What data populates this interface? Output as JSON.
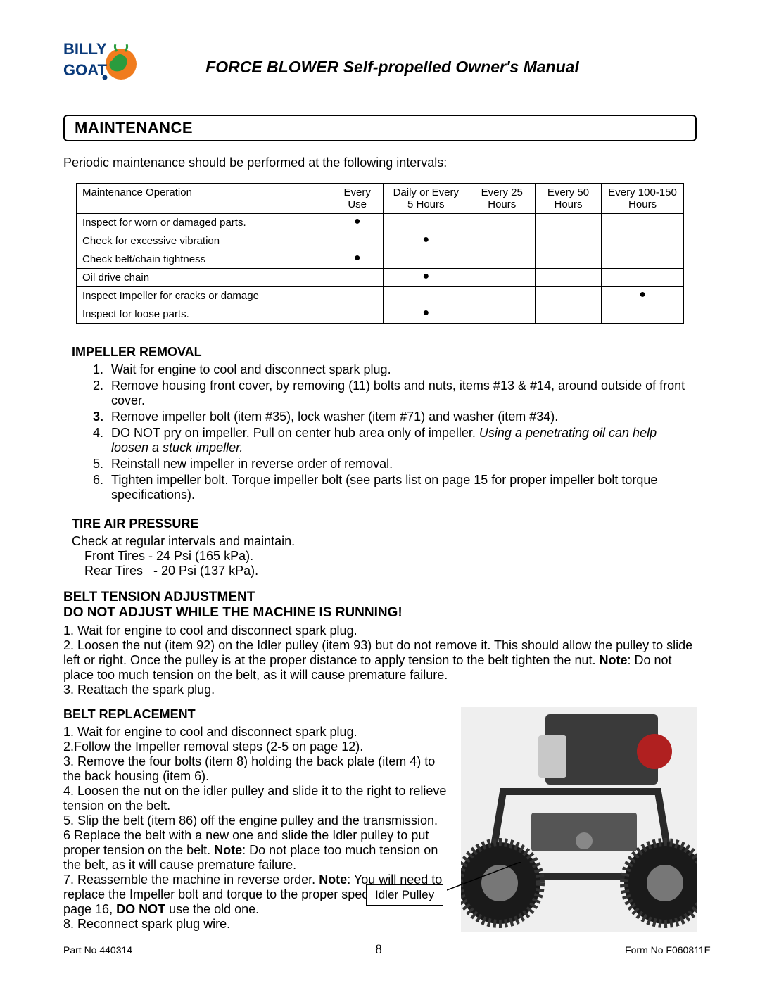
{
  "header": {
    "logo_top": "BILLY",
    "logo_bottom": "GOAT",
    "logo_colors": {
      "text": "#0a3a7a",
      "goat": "#2a9c3e",
      "bg_circle": "#f07c1e"
    },
    "title": "FORCE BLOWER Self-propelled Owner's Manual"
  },
  "section": {
    "title": "MAINTENANCE"
  },
  "intro": "Periodic maintenance should be performed at the following intervals:",
  "table": {
    "headers": [
      "Maintenance Operation",
      "Every Use",
      "Daily or Every 5 Hours",
      "Every 25 Hours",
      "Every 50 Hours",
      "Every 100-150 Hours"
    ],
    "rows": [
      {
        "op": "Inspect for worn or damaged parts.",
        "dots": [
          true,
          false,
          false,
          false,
          false
        ]
      },
      {
        "op": "Check for excessive vibration",
        "dots": [
          false,
          true,
          false,
          false,
          false
        ]
      },
      {
        "op": "Check belt/chain tightness",
        "dots": [
          true,
          false,
          false,
          false,
          false
        ]
      },
      {
        "op": "Oil drive chain",
        "dots": [
          false,
          true,
          false,
          false,
          false
        ]
      },
      {
        "op": "Inspect Impeller for cracks or damage",
        "dots": [
          false,
          false,
          false,
          false,
          true
        ]
      },
      {
        "op": "Inspect for loose parts.",
        "dots": [
          false,
          true,
          false,
          false,
          false
        ]
      }
    ],
    "dot_char": "●"
  },
  "impeller": {
    "title": "IMPELLER REMOVAL",
    "steps": [
      "Wait for engine to cool and disconnect spark plug.",
      "Remove housing front cover, by removing (11) bolts and nuts, items #13 & #14, around outside of front cover.",
      "Remove impeller bolt (item #35), lock washer (item #71) and washer (item #34).",
      "DO NOT pry on impeller. Pull on center hub area only of impeller. <span class=\"ital\">Using a penetrating oil can help loosen a stuck impeller.</span>",
      "Reinstall new impeller in reverse order of removal.",
      "Tighten impeller bolt. Torque impeller bolt (see parts list on page 15 for proper impeller bolt torque specifications)."
    ]
  },
  "tire": {
    "title": "TIRE AIR PRESSURE",
    "line1": "Check at regular intervals and maintain.",
    "line2": "Front Tires - 24 Psi (165 kPa).",
    "line3": "Rear Tires   - 20 Psi (137 kPa)."
  },
  "belt_tension": {
    "title1": "BELT TENSION ADJUSTMENT",
    "title2": "DO NOT ADJUST WHILE THE MACHINE IS RUNNING!",
    "body": "1. Wait for engine to cool and disconnect spark plug.\n2. Loosen the nut (item 92) on the Idler pulley (item 93) but do not remove it. This should allow the pulley to slide left or right. Once the pulley is at the proper distance to apply tension to the belt tighten the nut. <b>Note</b>: Do not place too much tension on the belt, as it will cause premature failure.\n3. Reattach the spark plug."
  },
  "belt_replace": {
    "title": "BELT REPLACEMENT",
    "body": "1. Wait for engine to cool and disconnect spark plug.\n2.Follow the Impeller removal steps (2-5 on page 12).\n3. Remove the four bolts (item 8) holding the back plate (item 4) to the back housing (item 6).\n4. Loosen the nut on the idler pulley and slide it to the right to relieve tension on the belt.\n5. Slip the belt (item 86) off the engine pulley and the transmission.\n6 Replace the belt with a new one and slide the Idler pulley to put proper tension on the belt. <b>Note</b>: Do not place too much tension on the belt, as it will cause premature failure.\n7. Reassemble the machine in reverse order. <b>Note</b>: You will need to replace the Impeller bolt and torque to the proper specifications see page 16, <b>DO NOT</b> use the old one.\n8. Reconnect spark plug wire.",
    "callout": "Idler Pulley"
  },
  "footer": {
    "left": "Part No 440314",
    "page": "8",
    "right": "Form No F060811E"
  }
}
